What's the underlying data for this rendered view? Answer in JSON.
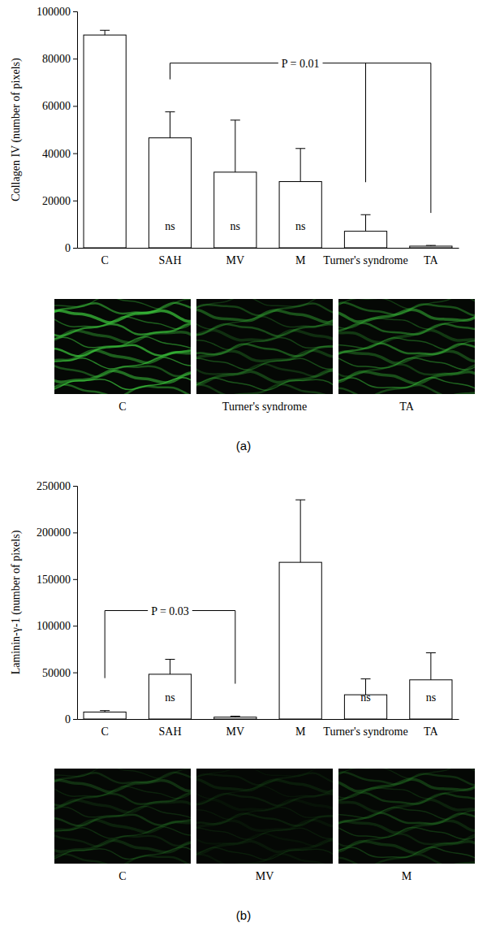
{
  "chart_data": [
    {
      "type": "bar",
      "y_label": "Collagen IV (number of pixels)",
      "categories": [
        "C",
        "SAH",
        "MV",
        "M",
        "Turner's syndrome",
        "TA"
      ],
      "values": [
        90000,
        46500,
        32000,
        28000,
        7000,
        700
      ],
      "errors": [
        2000,
        11000,
        22000,
        14000,
        7000,
        300
      ],
      "color": "#ffffff",
      "ylim": [
        0,
        100000
      ],
      "yticks": [
        0,
        20000,
        40000,
        60000,
        80000,
        100000
      ],
      "bar_labels": [
        null,
        "ns",
        "ns",
        "ns",
        null,
        null
      ],
      "annotations": [
        {
          "text": "P = 0.01",
          "from": "SAH",
          "to": [
            "Turner's syndrome",
            "TA"
          ]
        }
      ],
      "micrographs": [
        "C",
        "Turner's syndrome",
        "TA"
      ],
      "panel_label": "(a)"
    },
    {
      "type": "bar",
      "y_label": "Laminin-γ-1 (number of pixels)",
      "categories": [
        "C",
        "SAH",
        "MV",
        "M",
        "Turner's syndrome",
        "TA"
      ],
      "values": [
        7500,
        48000,
        2000,
        168000,
        26000,
        42000
      ],
      "errors": [
        1500,
        16000,
        1000,
        67000,
        17000,
        29000
      ],
      "color": "#ffffff",
      "ylim": [
        0,
        250000
      ],
      "yticks": [
        0,
        50000,
        100000,
        150000,
        200000,
        250000
      ],
      "bar_labels": [
        null,
        "ns",
        null,
        null,
        "ns",
        "ns"
      ],
      "annotations": [
        {
          "text": "P = 0.03",
          "from": "C",
          "to": [
            "MV"
          ]
        }
      ],
      "micrographs": [
        "C",
        "MV",
        "M"
      ],
      "panel_label": "(b)"
    }
  ]
}
